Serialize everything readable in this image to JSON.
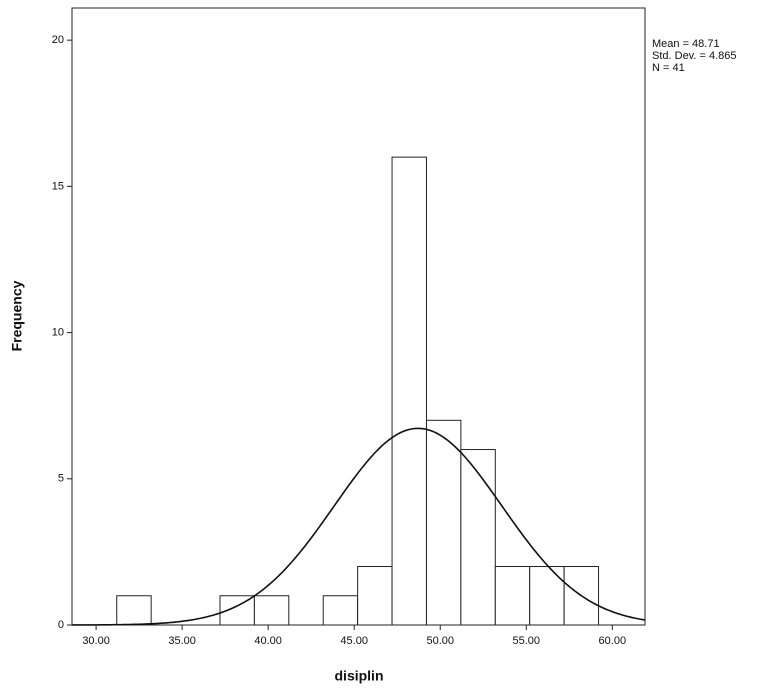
{
  "chart_data": {
    "type": "histogram",
    "x_label": "disiplin",
    "y_label": "Frequency",
    "bins": [
      31.2,
      33.2,
      35.2,
      37.2,
      39.2,
      41.2,
      43.2,
      45.2,
      47.2,
      49.2,
      51.2,
      53.2,
      55.2,
      57.2,
      59.2
    ],
    "values": [
      1,
      0,
      0,
      1,
      1,
      0,
      1,
      2,
      16,
      7,
      6,
      2,
      2,
      2
    ],
    "color": "#ffffff",
    "xlim": [
      28.6,
      61.9
    ],
    "ylim": [
      0,
      21.1
    ],
    "xticks": [
      {
        "value": 30,
        "label": "30.00"
      },
      {
        "value": 35,
        "label": "35.00"
      },
      {
        "value": 40,
        "label": "40.00"
      },
      {
        "value": 45,
        "label": "45.00"
      },
      {
        "value": 50,
        "label": "50.00"
      },
      {
        "value": 55,
        "label": "55.00"
      },
      {
        "value": 60,
        "label": "60.00"
      }
    ],
    "yticks": [
      0,
      5,
      10,
      15,
      20
    ],
    "normal_curve": {
      "mean": {
        "value": 48.71,
        "label": "Mean = 48.71"
      },
      "std_dev": {
        "value": 4.865,
        "label": "Std. Dev. = 4.865"
      },
      "n": {
        "value": 41,
        "label": "N = 41"
      }
    }
  }
}
